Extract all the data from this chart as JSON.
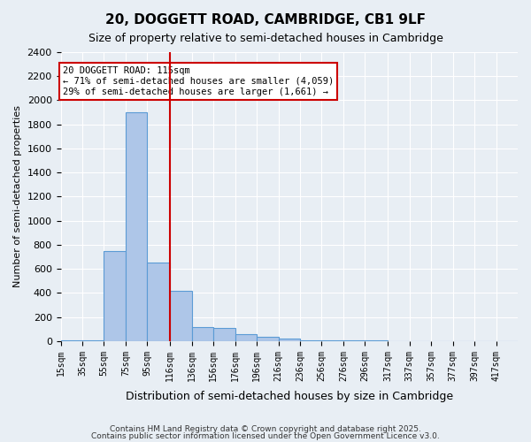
{
  "title1": "20, DOGGETT ROAD, CAMBRIDGE, CB1 9LF",
  "title2": "Size of property relative to semi-detached houses in Cambridge",
  "xlabel": "Distribution of semi-detached houses by size in Cambridge",
  "ylabel": "Number of semi-detached properties",
  "bin_labels": [
    "15sqm",
    "35sqm",
    "55sqm",
    "75sqm",
    "95sqm",
    "116sqm",
    "136sqm",
    "156sqm",
    "176sqm",
    "196sqm",
    "216sqm",
    "236sqm",
    "256sqm",
    "276sqm",
    "296sqm",
    "317sqm",
    "337sqm",
    "357sqm",
    "377sqm",
    "397sqm",
    "417sqm"
  ],
  "bin_edges": [
    15,
    35,
    55,
    75,
    95,
    116,
    136,
    156,
    176,
    196,
    216,
    236,
    256,
    276,
    296,
    317,
    337,
    357,
    377,
    397,
    417,
    437
  ],
  "bar_heights": [
    10,
    10,
    750,
    1900,
    650,
    420,
    120,
    110,
    60,
    35,
    20,
    5,
    5,
    5,
    5,
    3,
    0,
    0,
    0,
    0,
    0
  ],
  "bar_color": "#aec6e8",
  "bar_edge_color": "#5b9bd5",
  "red_line_x": 116,
  "red_line_color": "#cc0000",
  "annotation_text": "20 DOGGETT ROAD: 115sqm\n← 71% of semi-detached houses are smaller (4,059)\n29% of semi-detached houses are larger (1,661) →",
  "annotation_box_color": "#ffffff",
  "annotation_box_edge": "#cc0000",
  "ylim": [
    0,
    2400
  ],
  "yticks": [
    0,
    200,
    400,
    600,
    800,
    1000,
    1200,
    1400,
    1600,
    1800,
    2000,
    2200,
    2400
  ],
  "background_color": "#e8eef4",
  "grid_color": "#ffffff",
  "footer1": "Contains HM Land Registry data © Crown copyright and database right 2025.",
  "footer2": "Contains public sector information licensed under the Open Government Licence v3.0."
}
